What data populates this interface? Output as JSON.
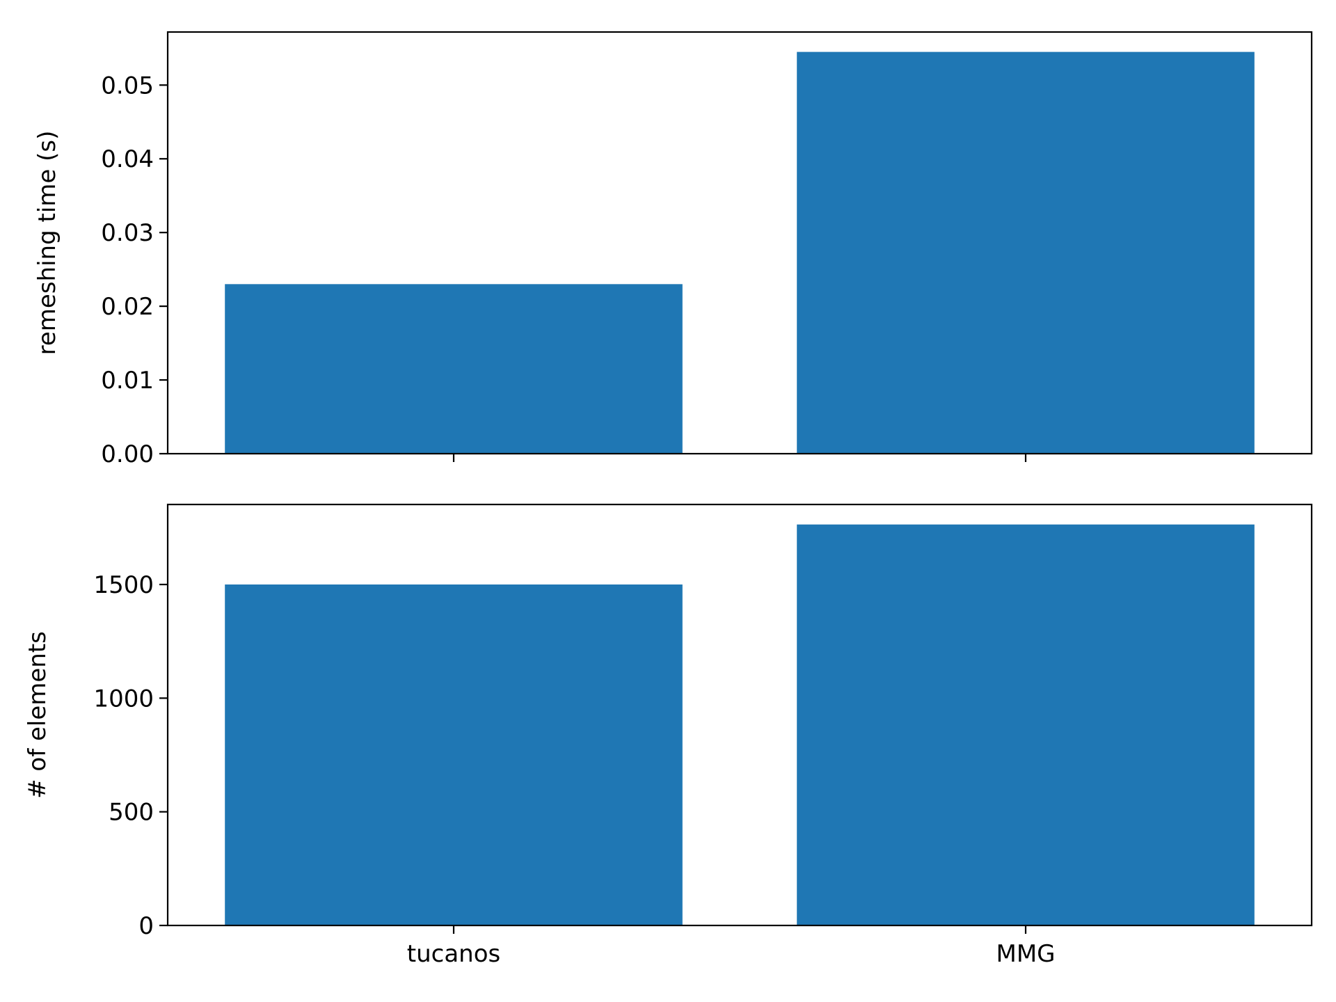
{
  "chart_data": [
    {
      "type": "bar",
      "categories": [
        "tucanos",
        "MMG"
      ],
      "values": [
        0.023,
        0.0545
      ],
      "title": "",
      "xlabel": "",
      "ylabel": "remeshing time (s)",
      "ylim": [
        0,
        0.0572
      ],
      "yticks": [
        0.0,
        0.01,
        0.02,
        0.03,
        0.04,
        0.05
      ],
      "ytick_labels": [
        "0.00",
        "0.01",
        "0.02",
        "0.03",
        "0.04",
        "0.05"
      ],
      "show_xtick_labels": false,
      "grid": false,
      "bar_color": "#1f77b4"
    },
    {
      "type": "bar",
      "categories": [
        "tucanos",
        "MMG"
      ],
      "values": [
        1500,
        1764
      ],
      "title": "",
      "xlabel": "",
      "ylabel": "# of elements",
      "ylim": [
        0,
        1852
      ],
      "yticks": [
        0,
        500,
        1000,
        1500
      ],
      "ytick_labels": [
        "0",
        "500",
        "1000",
        "1500"
      ],
      "show_xtick_labels": true,
      "grid": false,
      "bar_color": "#1f77b4"
    }
  ]
}
